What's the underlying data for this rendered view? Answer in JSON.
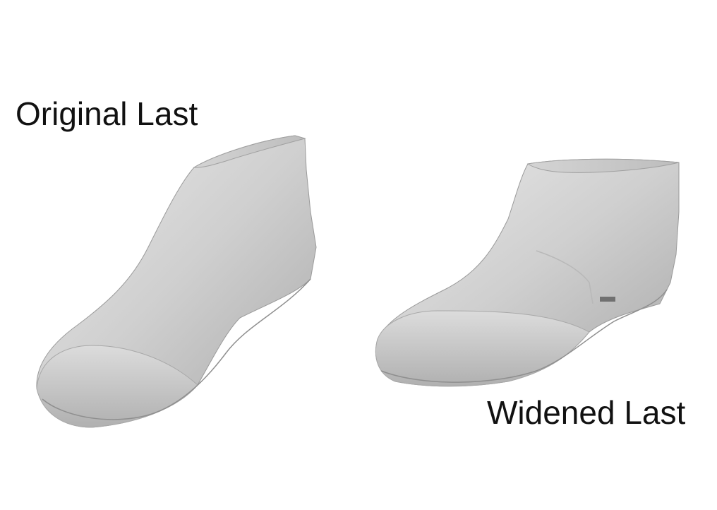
{
  "labels": {
    "original": "Original Last",
    "widened": "Widened Last"
  },
  "colors": {
    "background": "#ffffff",
    "mesh_light": "#e6e6e6",
    "mesh_mid": "#c8c8c8",
    "mesh_dark": "#9a9a9a",
    "text": "#111111"
  },
  "models": [
    {
      "name": "original-last",
      "shape": "shoe-last-mesh"
    },
    {
      "name": "widened-last",
      "shape": "shoe-last-mesh"
    }
  ]
}
